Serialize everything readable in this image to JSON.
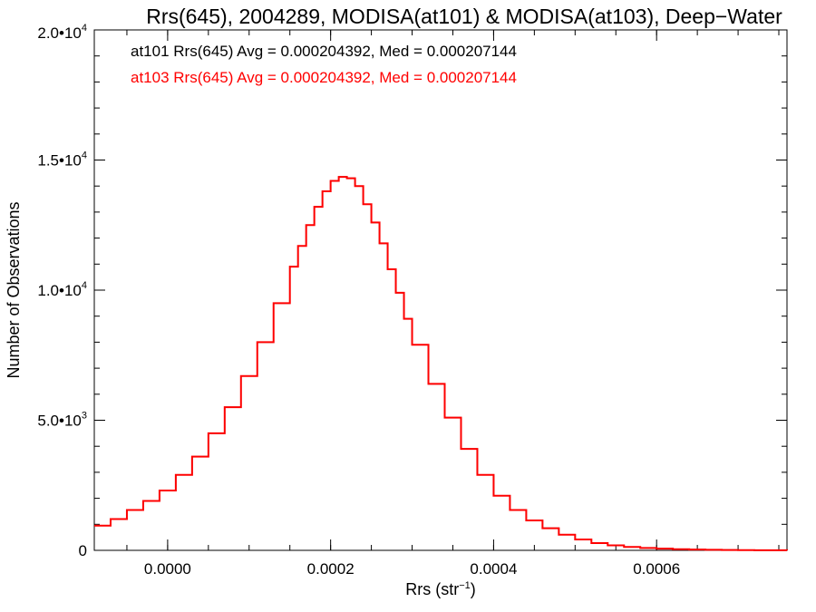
{
  "chart_data": {
    "type": "line",
    "step": true,
    "title": "Rrs(645), 2004289, MODISA(at101) & MODISA(at103), Deep−Water",
    "xlabel": {
      "base": "Rrs (str",
      "sup": "−1",
      "end": ")"
    },
    "ylabel": "Number of Observations",
    "xlim": [
      -9e-05,
      0.00076
    ],
    "ylim": [
      0,
      20000
    ],
    "grid": false,
    "legend_position": "top-left",
    "x_ticks": [
      {
        "value": 0.0,
        "label": "0.0000"
      },
      {
        "value": 0.0002,
        "label": "0.0002"
      },
      {
        "value": 0.0004,
        "label": "0.0004"
      },
      {
        "value": 0.0006,
        "label": "0.0006"
      }
    ],
    "x_minor_step": 5e-05,
    "y_ticks": [
      {
        "value": 0,
        "mant": "0",
        "exp": ""
      },
      {
        "value": 5000,
        "mant": "5.0•10",
        "exp": "3"
      },
      {
        "value": 10000,
        "mant": "1.0•10",
        "exp": "4"
      },
      {
        "value": 15000,
        "mant": "1.5•10",
        "exp": "4"
      },
      {
        "value": 20000,
        "mant": "2.0•10",
        "exp": "4"
      }
    ],
    "y_minor_step": 1000,
    "series": [
      {
        "name": "at101",
        "stats_text": "at101 Rrs(645) Avg = 0.000204392, Med = 0.000207144",
        "color": "#000000",
        "x": [
          -9e-05,
          -7e-05,
          -5e-05,
          -3e-05,
          -1e-05,
          1e-05,
          3e-05,
          5e-05,
          7e-05,
          9e-05,
          0.00011,
          0.00013,
          0.00015,
          0.00016,
          0.00017,
          0.00018,
          0.00019,
          0.0002,
          0.00021,
          0.00022,
          0.00023,
          0.00024,
          0.00025,
          0.00026,
          0.00027,
          0.00028,
          0.00029,
          0.0003,
          0.00032,
          0.00034,
          0.00036,
          0.00038,
          0.0004,
          0.00042,
          0.00044,
          0.00046,
          0.00048,
          0.0005,
          0.00052,
          0.00054,
          0.00056,
          0.00058,
          0.0006,
          0.00062,
          0.00064,
          0.00066,
          0.00068,
          0.0007,
          0.00072,
          0.00074,
          0.00076
        ],
        "y": [
          950,
          1200,
          1550,
          1900,
          2300,
          2900,
          3600,
          4500,
          5500,
          6700,
          8000,
          9500,
          10900,
          11700,
          12500,
          13200,
          13800,
          14200,
          14350,
          14300,
          14000,
          13300,
          12600,
          11800,
          10800,
          9900,
          8900,
          7900,
          6400,
          5100,
          3900,
          2900,
          2100,
          1550,
          1150,
          850,
          600,
          420,
          280,
          190,
          130,
          90,
          65,
          45,
          30,
          20,
          15,
          10,
          5,
          3,
          2
        ]
      },
      {
        "name": "at103",
        "stats_text": "at103 Rrs(645) Avg = 0.000204392, Med = 0.000207144",
        "color": "#ff0000",
        "x": [
          -9e-05,
          -7e-05,
          -5e-05,
          -3e-05,
          -1e-05,
          1e-05,
          3e-05,
          5e-05,
          7e-05,
          9e-05,
          0.00011,
          0.00013,
          0.00015,
          0.00016,
          0.00017,
          0.00018,
          0.00019,
          0.0002,
          0.00021,
          0.00022,
          0.00023,
          0.00024,
          0.00025,
          0.00026,
          0.00027,
          0.00028,
          0.00029,
          0.0003,
          0.00032,
          0.00034,
          0.00036,
          0.00038,
          0.0004,
          0.00042,
          0.00044,
          0.00046,
          0.00048,
          0.0005,
          0.00052,
          0.00054,
          0.00056,
          0.00058,
          0.0006,
          0.00062,
          0.00064,
          0.00066,
          0.00068,
          0.0007,
          0.00072,
          0.00074,
          0.00076
        ],
        "y": [
          950,
          1200,
          1550,
          1900,
          2300,
          2900,
          3600,
          4500,
          5500,
          6700,
          8000,
          9500,
          10900,
          11700,
          12500,
          13200,
          13800,
          14200,
          14350,
          14300,
          14000,
          13300,
          12600,
          11800,
          10800,
          9900,
          8900,
          7900,
          6400,
          5100,
          3900,
          2900,
          2100,
          1550,
          1150,
          850,
          600,
          420,
          280,
          190,
          130,
          90,
          65,
          45,
          30,
          20,
          15,
          10,
          5,
          3,
          2
        ]
      }
    ]
  }
}
